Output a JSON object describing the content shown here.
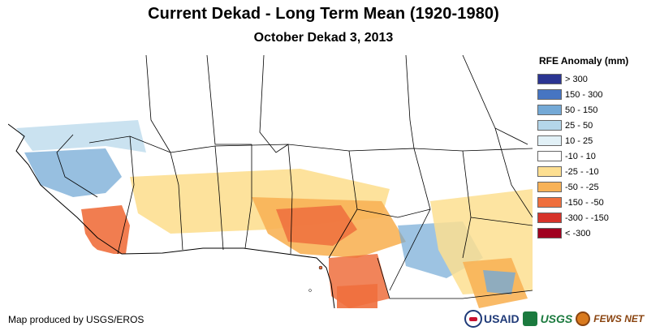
{
  "title": "Current Dekad - Long Term Mean (1920-1980)",
  "subtitle": "October Dekad 3, 2013",
  "credit": "Map produced by USGS/EROS",
  "legend": {
    "title": "RFE Anomaly (mm)",
    "items": [
      {
        "label": "> 300",
        "color": "#2b3592"
      },
      {
        "label": "150 - 300",
        "color": "#4675c2"
      },
      {
        "label": "50 - 150",
        "color": "#74a9d6"
      },
      {
        "label": "25 - 50",
        "color": "#b4d6ea"
      },
      {
        "label": "10 - 25",
        "color": "#e2f1f7"
      },
      {
        "label": "-10 - 10",
        "color": "#ffffff"
      },
      {
        "label": "-25 - -10",
        "color": "#fddf91"
      },
      {
        "label": "-50 - -25",
        "color": "#f8b257"
      },
      {
        "label": "-150 - -50",
        "color": "#ef6f3d"
      },
      {
        "label": "-300 - -150",
        "color": "#d6332a"
      },
      {
        "label": "< -300",
        "color": "#a0001f"
      }
    ]
  },
  "logos": {
    "usaid": "USAID",
    "usgs": "USGS",
    "fews": "FEWS NET"
  }
}
